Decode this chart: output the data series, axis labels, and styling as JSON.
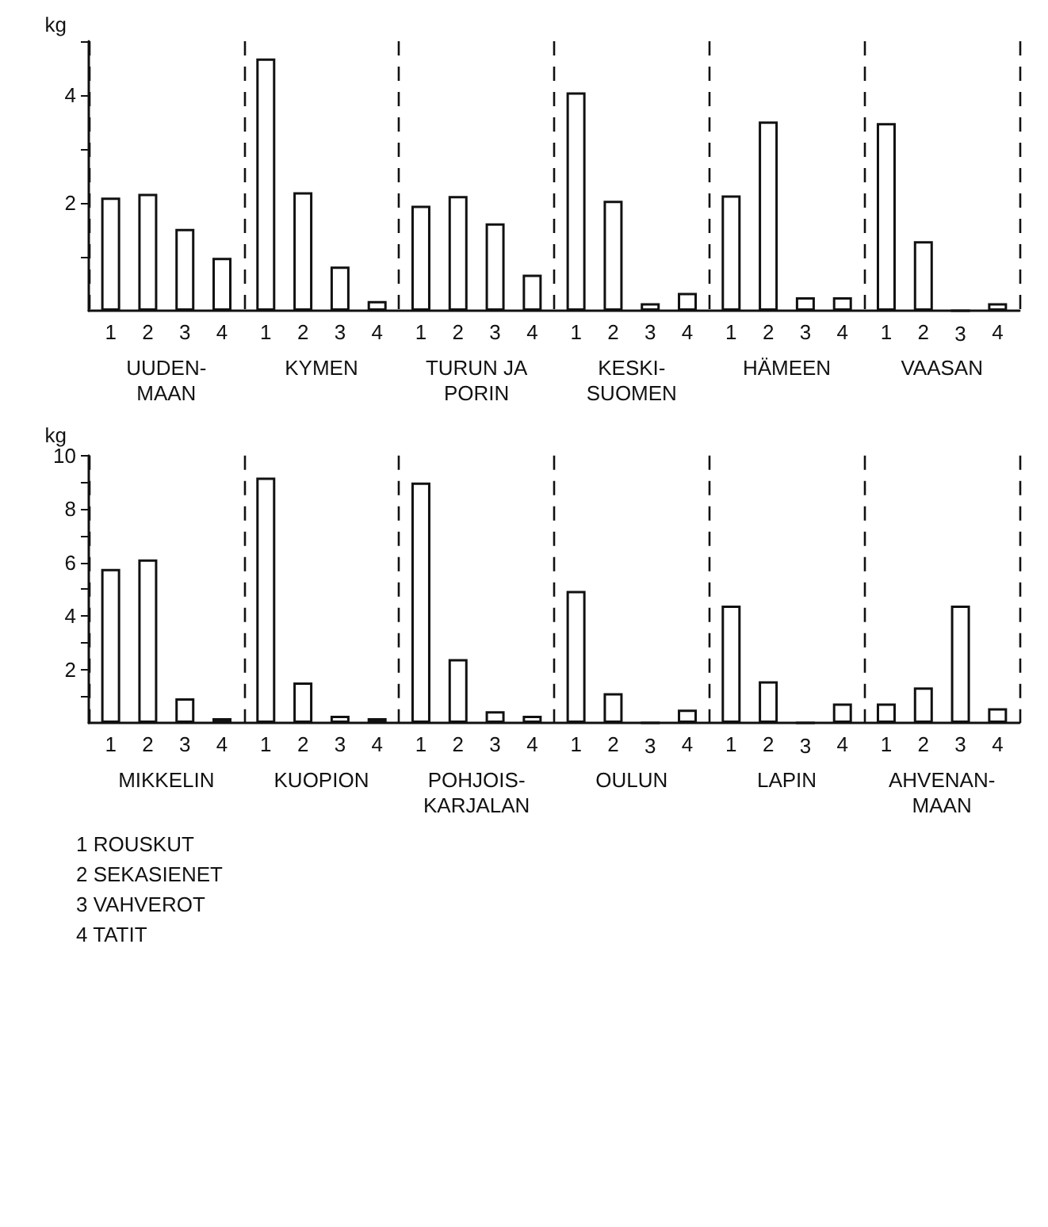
{
  "chart_data": [
    {
      "type": "bar",
      "ylabel": "kg",
      "categories": [
        "UUDEN-\nMAAN",
        "KYMEN",
        "TURUN JA\nPORIN",
        "KESKI-\nSUOMEN",
        "HÄMEEN",
        "VAASAN"
      ],
      "series": [
        {
          "name": "1",
          "color": "#ffffff",
          "values": [
            2.1,
            4.68,
            1.95,
            4.05,
            2.14,
            3.48
          ]
        },
        {
          "name": "2",
          "color": "#ffffff",
          "values": [
            2.17,
            2.2,
            2.13,
            2.04,
            3.51,
            1.29
          ]
        },
        {
          "name": "3",
          "color": "#ffffff",
          "values": [
            1.52,
            0.82,
            1.62,
            0.14,
            0.25,
            0
          ]
        },
        {
          "name": "4",
          "color": "#ffffff",
          "values": [
            0.98,
            0.18,
            0.67,
            0.33,
            0.25,
            0.14
          ]
        }
      ],
      "ylim": [
        0,
        5
      ],
      "yticks": [
        {
          "value": 1,
          "label": null
        },
        2,
        {
          "value": 3,
          "label": null
        },
        4,
        {
          "value": 5,
          "label": null
        }
      ],
      "grid": "x"
    },
    {
      "type": "bar",
      "ylabel": "kg",
      "categories": [
        "MIKKELIN",
        "KUOPION",
        "POHJOIS-\nKARJALAN",
        "OULUN",
        "LAPIN",
        "AHVENAN-\nMAAN"
      ],
      "series": [
        {
          "name": "1",
          "color": "#ffffff",
          "values": [
            5.76,
            9.18,
            8.99,
            4.94,
            4.39,
            0.73
          ]
        },
        {
          "name": "2",
          "color": "#ffffff",
          "values": [
            6.12,
            1.51,
            2.39,
            1.11,
            1.56,
            1.33
          ]
        },
        {
          "name": "3",
          "color": "#ffffff",
          "values": [
            0.92,
            0.27,
            0.44,
            0,
            0,
            4.39
          ]
        },
        {
          "name": "4",
          "color": "#ffffff",
          "values": [
            0.18,
            0.18,
            0.27,
            0.5,
            0.73,
            0.55
          ]
        }
      ],
      "ylim": [
        0,
        10
      ],
      "yticks": [
        {
          "value": 1,
          "label": null
        },
        2,
        {
          "value": 3,
          "label": null
        },
        4,
        {
          "value": 5,
          "label": null
        },
        6,
        {
          "value": 7,
          "label": null
        },
        8,
        {
          "value": 9,
          "label": null
        },
        10
      ],
      "grid": "x",
      "annotations": [
        "1 ROUSKUT",
        "2 SEKASIENET",
        "3 VAHVEROT",
        "4 TATIT"
      ]
    }
  ]
}
